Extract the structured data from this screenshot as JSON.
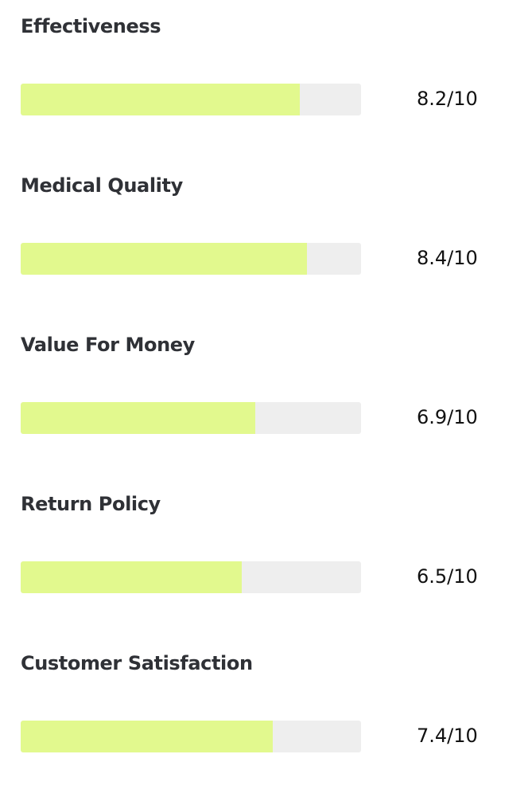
{
  "ratings": [
    {
      "label": "Effectiveness",
      "score_text": "8.2/10",
      "value": 8.2,
      "max": 10
    },
    {
      "label": "Medical Quality",
      "score_text": "8.4/10",
      "value": 8.4,
      "max": 10
    },
    {
      "label": "Value For Money",
      "score_text": "6.9/10",
      "value": 6.9,
      "max": 10
    },
    {
      "label": "Return Policy",
      "score_text": "6.5/10",
      "value": 6.5,
      "max": 10
    },
    {
      "label": "Customer Satisfaction",
      "score_text": "7.4/10",
      "value": 7.4,
      "max": 10
    }
  ],
  "colors": {
    "fill": "#e2f98e",
    "track": "#eeeeee",
    "label": "#2f3136",
    "score": "#111111"
  }
}
